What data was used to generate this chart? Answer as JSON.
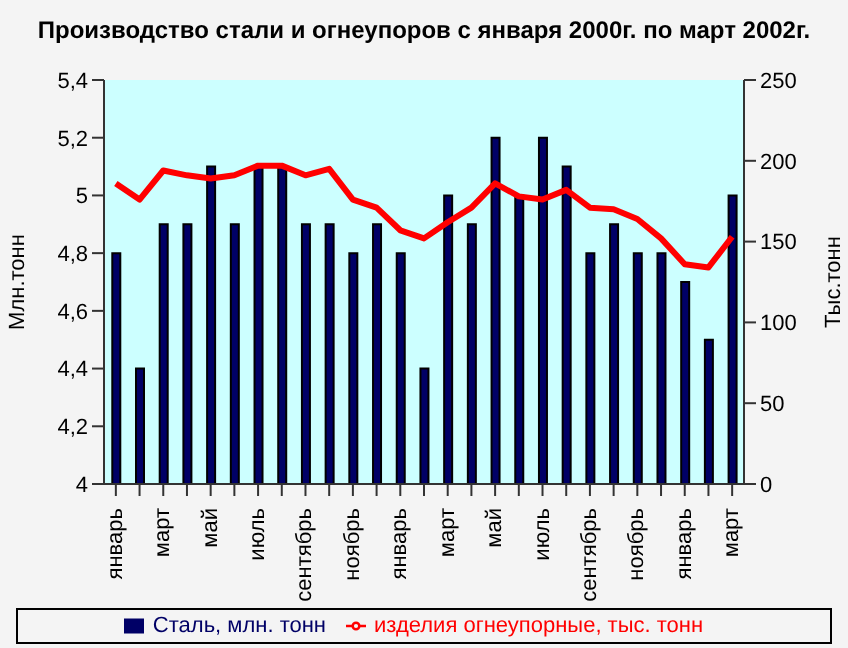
{
  "chart_data": {
    "type": "bar",
    "title": "Производство стали и огнеупоров с января 2000г. по март 2002г.",
    "ylabel": "Млн.тонн",
    "y2label": "Тыс.тонн",
    "categories": [
      "январь",
      null,
      "март",
      null,
      "май",
      null,
      "июль",
      null,
      "сентябрь",
      null,
      "ноябрь",
      null,
      "январь",
      null,
      "март",
      null,
      "май",
      null,
      "июль",
      null,
      "сентябрь",
      null,
      "ноябрь",
      null,
      "январь",
      null,
      "март"
    ],
    "series": [
      {
        "name": "Сталь, млн. тонн",
        "color": "#000066",
        "values": [
          4.8,
          4.4,
          4.9,
          4.9,
          5.1,
          4.9,
          5.1,
          5.1,
          4.9,
          4.9,
          4.8,
          4.9,
          4.8,
          4.4,
          5.0,
          4.9,
          5.2,
          5.0,
          5.2,
          5.1,
          4.8,
          4.9,
          4.8,
          4.8,
          4.7,
          4.5,
          5.0
        ]
      },
      {
        "name": "изделия огнеупорные, тыс. тонн",
        "type": "line",
        "axis": "y2",
        "color": "#ff0000",
        "values": [
          186,
          176,
          194,
          191,
          189,
          191,
          197,
          197,
          191,
          195,
          176,
          171,
          157,
          152,
          162,
          171,
          186,
          178,
          176,
          182,
          171,
          170,
          164,
          152,
          136,
          134,
          153
        ]
      }
    ],
    "ylim": [
      4,
      5.4
    ],
    "yticks": [
      {
        "value": 4,
        "label": "4"
      },
      {
        "value": 4.2,
        "label": "4,2"
      },
      {
        "value": 4.4,
        "label": "4,4"
      },
      {
        "value": 4.6,
        "label": "4,6"
      },
      {
        "value": 4.8,
        "label": "4,8"
      },
      {
        "value": 5,
        "label": "5"
      },
      {
        "value": 5.2,
        "label": "5,2"
      },
      {
        "value": 5.4,
        "label": "5,4"
      }
    ],
    "y2lim": [
      0,
      250
    ],
    "y2ticks": [
      0,
      50,
      100,
      150,
      200,
      250
    ],
    "legend": "bottom",
    "marker": "none",
    "line_style": "solid"
  }
}
